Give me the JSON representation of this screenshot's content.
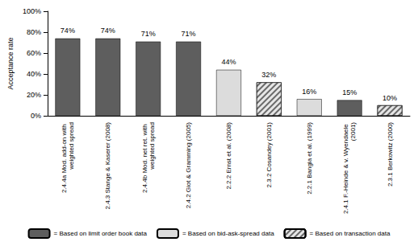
{
  "chart_data": {
    "type": "bar",
    "y_label": "Acceptance rate",
    "categories": [
      "2.4.4a Mod. add-on with weighted spread",
      "2.4.3 Stange & Kaserer (2008)",
      "2.4.4b Mod. net ret. with weighted spread",
      "2.4.2 Giot & Gramming (2005)",
      "2.2.2 Ernst et al. (2008)",
      "2.3.2 Cosandey (2001)",
      "2.2.1 Bangia et al. (1999)",
      "2.4.1 F.-Heinde & v. Wyendaele (2001)",
      "2.3.1 Berkowitz (2000)"
    ],
    "series": [
      {
        "name": "= Based on limit order book data",
        "color": "#5e5e5e",
        "values": [
          74,
          74,
          71,
          71,
          null,
          null,
          null,
          15,
          null
        ],
        "value_labels": [
          "74%",
          "74%",
          "71%",
          "71%",
          null,
          null,
          null,
          "15%",
          null
        ]
      },
      {
        "name": "= Based on bid-ask-spread data",
        "color": "#dcdcdc",
        "values": [
          null,
          null,
          null,
          null,
          44,
          null,
          16,
          null,
          null
        ],
        "value_labels": [
          null,
          null,
          null,
          null,
          "44%",
          null,
          "16%",
          null,
          null
        ]
      },
      {
        "name": "= Based on transaction data",
        "color": "#e6e6e6",
        "values": [
          null,
          null,
          null,
          null,
          null,
          32,
          null,
          null,
          10
        ],
        "value_labels": [
          null,
          null,
          null,
          null,
          null,
          "32%",
          null,
          null,
          "10%"
        ]
      }
    ],
    "ylim": [
      0,
      100
    ],
    "yticks": [
      {
        "value": 0,
        "label": "0%"
      },
      {
        "value": 20,
        "label": "20%"
      },
      {
        "value": 40,
        "label": "40%"
      },
      {
        "value": 60,
        "label": "60%"
      },
      {
        "value": 80,
        "label": "80%"
      },
      {
        "value": 100,
        "label": "100%"
      }
    ],
    "grid": false,
    "legend": "bottom",
    "data_labels": true
  }
}
